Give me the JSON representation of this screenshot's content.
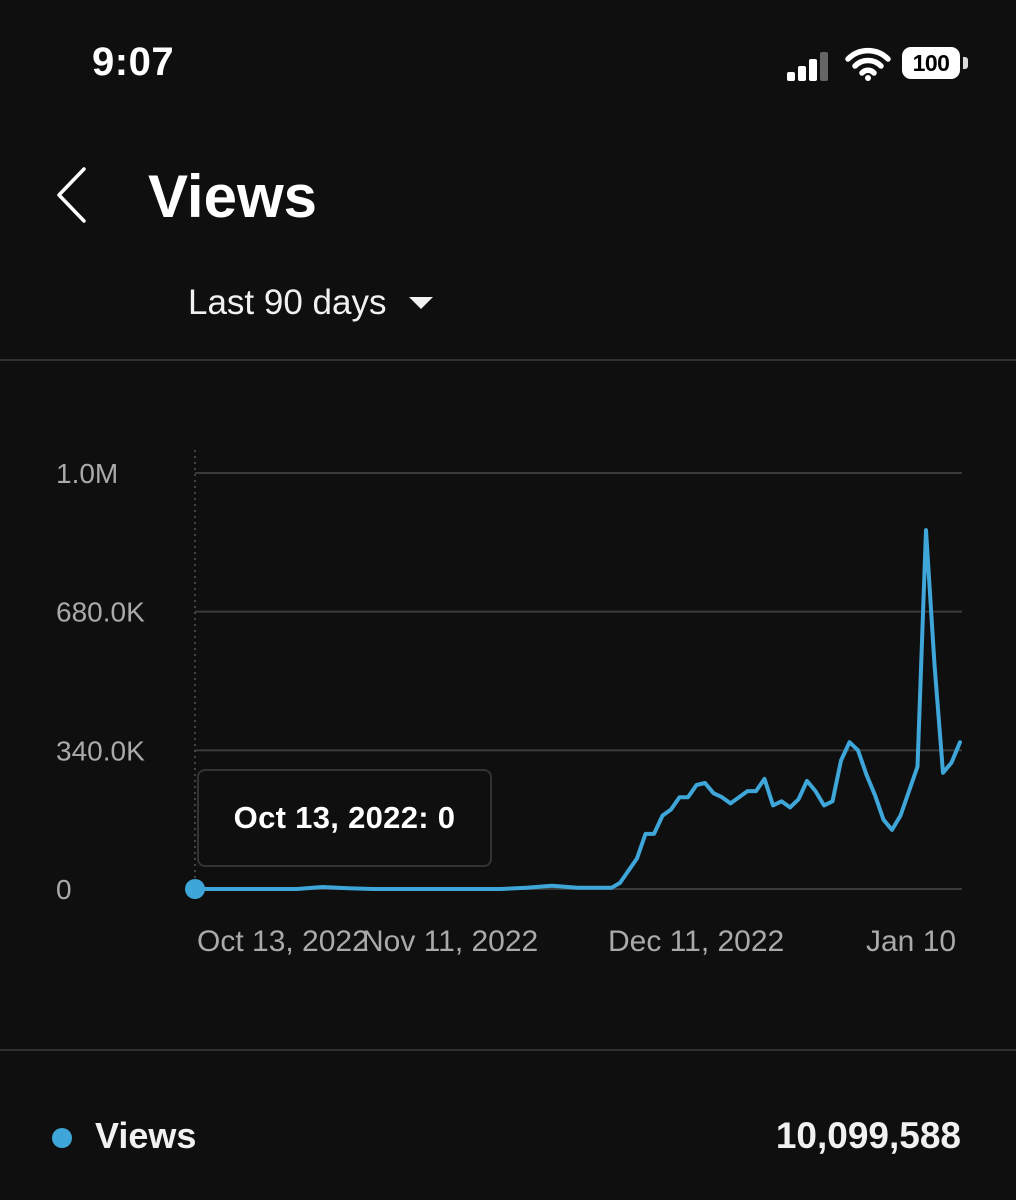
{
  "status_bar": {
    "time": "9:07",
    "battery": "100"
  },
  "header": {
    "title": "Views",
    "range_label": "Last 90 days"
  },
  "colors": {
    "background": "#0f0f0f",
    "line": "#3ea6d8",
    "grid": "#3a3a3a",
    "tick_text": "#aaaaaa"
  },
  "tooltip": {
    "text": "Oct 13, 2022: 0"
  },
  "legend": {
    "label": "Views",
    "total": "10,099,588"
  },
  "chart_data": {
    "type": "line",
    "title": "",
    "xlabel": "",
    "ylabel": "",
    "x_ticks": [
      "Oct 13, 2022",
      "Nov 11, 2022",
      "Dec 11, 2022",
      "Jan 10"
    ],
    "y_ticks": [
      "0",
      "340.0K",
      "680.0K",
      "1.0M"
    ],
    "ylim": [
      0,
      1020000
    ],
    "grid": true,
    "series": [
      {
        "name": "Views",
        "x": [
          "2022-10-13",
          "2022-10-16",
          "2022-10-19",
          "2022-10-22",
          "2022-10-25",
          "2022-10-28",
          "2022-10-31",
          "2022-11-03",
          "2022-11-06",
          "2022-11-09",
          "2022-11-12",
          "2022-11-15",
          "2022-11-18",
          "2022-11-21",
          "2022-11-24",
          "2022-11-27",
          "2022-11-30",
          "2022-12-01",
          "2022-12-02",
          "2022-12-03",
          "2022-12-04",
          "2022-12-05",
          "2022-12-06",
          "2022-12-07",
          "2022-12-08",
          "2022-12-09",
          "2022-12-10",
          "2022-12-11",
          "2022-12-12",
          "2022-12-13",
          "2022-12-14",
          "2022-12-15",
          "2022-12-16",
          "2022-12-17",
          "2022-12-18",
          "2022-12-19",
          "2022-12-20",
          "2022-12-21",
          "2022-12-22",
          "2022-12-23",
          "2022-12-24",
          "2022-12-25",
          "2022-12-26",
          "2022-12-27",
          "2022-12-28",
          "2022-12-29",
          "2022-12-30",
          "2022-12-31",
          "2023-01-01",
          "2023-01-02",
          "2023-01-03",
          "2023-01-04",
          "2023-01-05",
          "2023-01-06",
          "2023-01-07",
          "2023-01-08",
          "2023-01-09",
          "2023-01-10",
          "2023-01-11"
        ],
        "y": [
          0,
          0,
          0,
          0,
          0,
          5000,
          2000,
          0,
          0,
          0,
          0,
          0,
          0,
          3000,
          8000,
          3000,
          3000,
          3000,
          15000,
          45000,
          75000,
          135000,
          135000,
          180000,
          195000,
          225000,
          225000,
          255000,
          260000,
          235000,
          225000,
          210000,
          225000,
          240000,
          240000,
          270000,
          205000,
          215000,
          200000,
          220000,
          265000,
          240000,
          205000,
          215000,
          315000,
          360000,
          340000,
          280000,
          230000,
          170000,
          145000,
          180000,
          240000,
          300000,
          880000,
          550000,
          285000,
          310000,
          360000
        ]
      }
    ]
  }
}
